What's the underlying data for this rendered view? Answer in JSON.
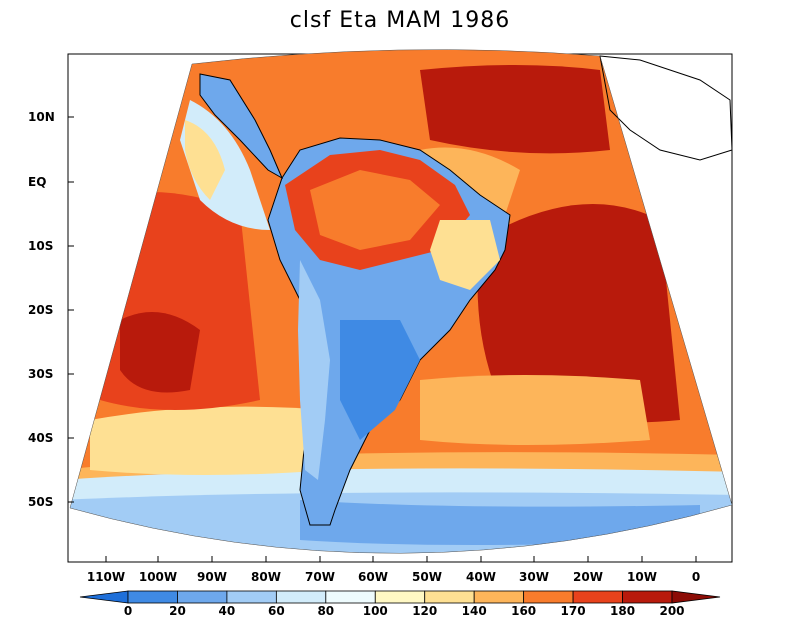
{
  "title": "clsf Eta MAM 1986",
  "lat_labels": [
    "10N",
    "EQ",
    "10S",
    "20S",
    "30S",
    "40S",
    "50S"
  ],
  "lon_labels": [
    "110W",
    "100W",
    "90W",
    "80W",
    "70W",
    "60W",
    "50W",
    "40W",
    "30W",
    "20W",
    "10W",
    "0"
  ],
  "colorbar": {
    "labels": [
      "0",
      "20",
      "40",
      "60",
      "80",
      "100",
      "120",
      "140",
      "160",
      "170",
      "180",
      "200"
    ],
    "colors": [
      "#1e6fd9",
      "#3f8ae4",
      "#6ea8ec",
      "#a2ccf5",
      "#d2ecfa",
      "#eefbfd",
      "#fff8c4",
      "#fee093",
      "#fdb55a",
      "#f87c2c",
      "#e8421c",
      "#b81a0c",
      "#8c0c06"
    ]
  },
  "palette": {
    "deep_blue": "#3f8ae4",
    "mid_blue": "#6ea8ec",
    "light_blue": "#a2ccf5",
    "pale_blue": "#d2ecfa",
    "yellow": "#fee093",
    "light_orange": "#fdb55a",
    "orange": "#f87c2c",
    "red_orange": "#e8421c",
    "red": "#b81a0c"
  }
}
